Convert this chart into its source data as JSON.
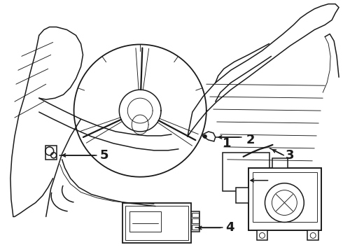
{
  "bg_color": "#ffffff",
  "line_color": "#1a1a1a",
  "fig_width": 4.9,
  "fig_height": 3.6,
  "dpi": 100,
  "label_fontsize": 13,
  "label_fontweight": "bold",
  "lw_main": 1.1,
  "lw_thin": 0.65,
  "lw_thick": 1.5
}
